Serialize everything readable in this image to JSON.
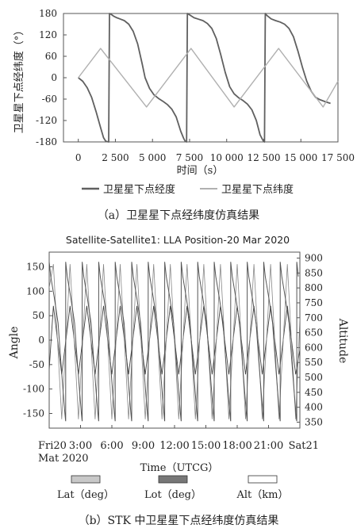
{
  "chart_data": [
    {
      "type": "line",
      "ylabel": "卫星星下点经纬度（°）",
      "xlabel": "时间（s）",
      "ylim": [
        -180,
        180
      ],
      "yticks": [
        "180",
        "120",
        "60",
        "0",
        "-60",
        "-120",
        "-180"
      ],
      "xlim": [
        -1000,
        17500
      ],
      "xticks": [
        "0",
        "2 500",
        "5 000",
        "7 500",
        "10 000",
        "12 500",
        "15 000",
        "17 500"
      ],
      "xtick_values": [
        0,
        2500,
        5000,
        7500,
        10000,
        12500,
        15000,
        17500
      ],
      "legend": [
        "卫星星下点经度",
        "卫星星下点纬度"
      ],
      "caption": "（a）卫星星下点经纬度仿真结果",
      "series": [
        {
          "name": "卫星星下点经度",
          "color": "#606060",
          "x": [
            0,
            300,
            600,
            900,
            1200,
            1500,
            1700,
            1850,
            1950,
            2050,
            2100,
            2200,
            2400,
            2600,
            2800,
            3100,
            3400,
            3700,
            4000,
            4300,
            4500,
            4800,
            5100,
            5400,
            5700,
            6000,
            6300,
            6600,
            6900,
            7100,
            7200,
            7300,
            7350,
            7500,
            7800,
            8100,
            8400,
            8700,
            9000,
            9300,
            9600,
            9900,
            10200,
            10500,
            10800,
            11100,
            11400,
            11700,
            12000,
            12250,
            12400,
            12480,
            12550,
            12600,
            12700,
            13000,
            13300,
            13600,
            13900,
            14200,
            14500,
            14800,
            15100,
            15400,
            15700,
            16000,
            16300,
            16700,
            17000
          ],
          "y": [
            0,
            -10,
            -28,
            -55,
            -95,
            -140,
            -168,
            -178,
            -179,
            -180,
            180,
            178,
            172,
            168,
            165,
            160,
            150,
            130,
            95,
            40,
            0,
            -30,
            -48,
            -58,
            -66,
            -75,
            -88,
            -110,
            -150,
            -170,
            -178,
            -180,
            180,
            176,
            168,
            164,
            160,
            152,
            138,
            110,
            65,
            15,
            -25,
            -45,
            -56,
            -64,
            -74,
            -90,
            -120,
            -160,
            -172,
            -178,
            -180,
            180,
            175,
            165,
            160,
            156,
            150,
            138,
            115,
            75,
            30,
            -10,
            -38,
            -55,
            -62,
            -68,
            -72
          ]
        },
        {
          "name": "卫星星下点纬度",
          "color": "#b0b0b0",
          "x": [
            0,
            1500,
            4600,
            7600,
            10500,
            13500,
            16500,
            17500
          ],
          "y": [
            0,
            82,
            -82,
            82,
            -82,
            82,
            -82,
            -10
          ]
        }
      ]
    },
    {
      "type": "line",
      "title": "Satellite-Satellite1: LLA Position-20 Mar 2020",
      "ylabel": "Angle",
      "y2label": "Altitude",
      "ylim": [
        -180,
        180
      ],
      "yticks": [
        "150",
        "100",
        "50",
        "0",
        "-50",
        "-100",
        "-150"
      ],
      "y2lim": [
        330,
        920
      ],
      "y2ticks": [
        "900",
        "850",
        "800",
        "750",
        "700",
        "650",
        "600",
        "550",
        "500",
        "450",
        "400",
        "350"
      ],
      "xticks": [
        "Fri20",
        "3:00",
        "6:00",
        "9:00",
        "12:00",
        "15:00",
        "18:00",
        "21:00",
        "Sat21"
      ],
      "xtick_sub": "Mat 2020",
      "xlabel": "Time（UTCG）",
      "legend": [
        {
          "label": "Lat（deg）",
          "color": "#c8c8c8"
        },
        {
          "label": "Lot（deg）",
          "color": "#777777"
        },
        {
          "label": "Alt（km）",
          "color": "#ffffff"
        }
      ],
      "caption": "（b）STK 中卫星星下点经纬度仿真结果",
      "series": [
        {
          "name": "Lat（deg）",
          "color": "#444444",
          "x": [
            0.0,
            0.4,
            1.2,
            2.0,
            2.8,
            3.6,
            4.4,
            5.2,
            6.0,
            6.8,
            7.6,
            8.4,
            9.2,
            10.0,
            10.8,
            11.6,
            12.4,
            13.2,
            14.0,
            14.8,
            15.6,
            16.4,
            17.2,
            18.0,
            18.8,
            19.6,
            20.4,
            21.2,
            22.0,
            22.8,
            23.6,
            24.0
          ],
          "y": [
            -60,
            70,
            -70,
            70,
            -70,
            70,
            -70,
            70,
            -70,
            70,
            -70,
            70,
            -70,
            70,
            -70,
            70,
            -70,
            70,
            -70,
            70,
            -70,
            70,
            -70,
            70,
            -70,
            70,
            -70,
            70,
            -70,
            70,
            -70,
            -20
          ]
        },
        {
          "name": "Lot（deg）",
          "color": "#555555",
          "period_hours": 1.58,
          "start_hours": 0.0,
          "range": [
            0,
            24
          ]
        },
        {
          "name": "Alt（km）",
          "color": "#888888",
          "x": [
            0.0,
            0.4,
            1.2,
            2.0,
            2.8,
            3.6,
            4.4,
            5.2,
            6.0,
            6.8,
            7.6,
            8.4,
            9.2,
            10.0,
            10.8,
            11.6,
            12.4,
            13.2,
            14.0,
            14.8,
            15.6,
            16.4,
            17.2,
            18.0,
            18.8,
            19.6,
            20.4,
            21.2,
            22.0,
            22.8,
            23.6,
            24.0
          ],
          "y": [
            800,
            880,
            360,
            880,
            360,
            880,
            360,
            880,
            360,
            880,
            360,
            880,
            360,
            880,
            360,
            880,
            360,
            880,
            360,
            880,
            360,
            880,
            360,
            880,
            360,
            880,
            360,
            880,
            360,
            880,
            360,
            700
          ]
        }
      ]
    }
  ]
}
